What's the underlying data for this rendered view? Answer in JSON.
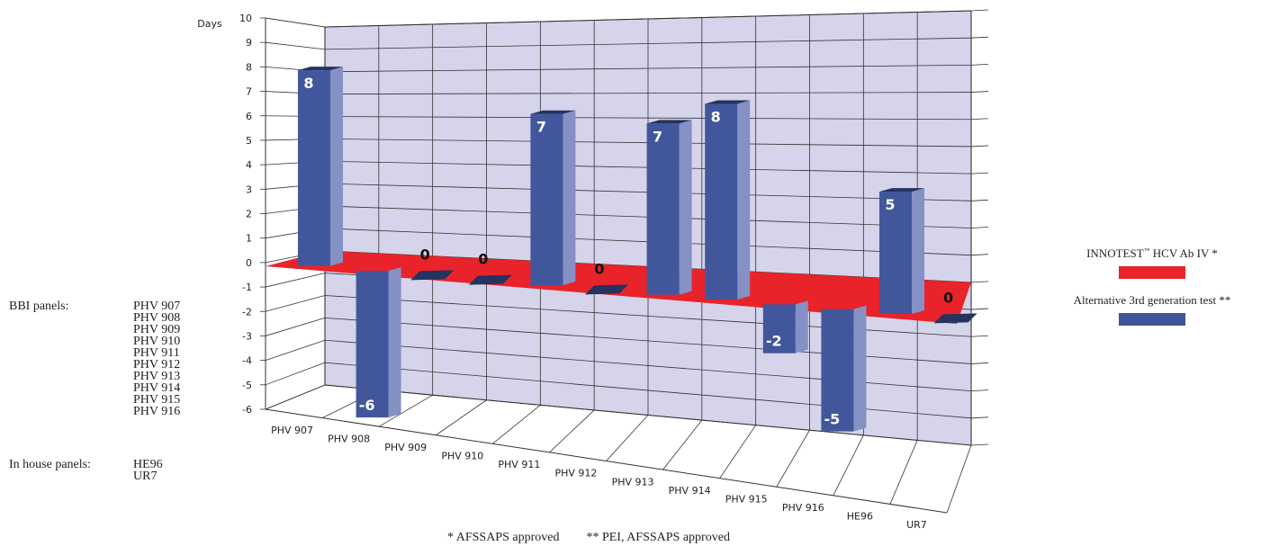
{
  "chart_data": {
    "type": "bar",
    "title": "",
    "ylabel": "Days",
    "xlabel": "",
    "ylim": [
      -6,
      10
    ],
    "categories": [
      "PHV 907",
      "PHV 908",
      "PHV 909",
      "PHV 910",
      "PHV 911",
      "PHV 912",
      "PHV 913",
      "PHV 914",
      "PHV 915",
      "PHV 916",
      "HE96",
      "UR7"
    ],
    "series": [
      {
        "name": "INNOTEST™ HCV Ab IV *",
        "values": [
          0,
          0,
          0,
          0,
          0,
          0,
          0,
          0,
          0,
          0,
          0,
          0
        ]
      },
      {
        "name": "Alternative 3rd generation test **",
        "values": [
          8,
          -6,
          0,
          0,
          7,
          0,
          7,
          8,
          -2,
          -5,
          5,
          0
        ]
      }
    ],
    "data_labels": [
      "8",
      "-6",
      "0",
      "0",
      "7",
      "0",
      "7",
      "8",
      "-2",
      "-5",
      "5",
      "0"
    ],
    "colors": {
      "innotest": "#e8232a",
      "alternative": "#3e5699",
      "background_wall": "#d6d4ea"
    },
    "grid": true,
    "legend_position": "right"
  },
  "legend": {
    "innotest": {
      "name_pre": "INNOTEST",
      "tm": "™",
      "name_post": " HCV Ab IV *",
      "color": "#e8232a"
    },
    "alternative": {
      "name": "Alternative 3rd generation test **",
      "color": "#3e5699"
    }
  },
  "side_panels": {
    "bbi_label": "BBI panels:",
    "bbi_items": [
      "PHV 907",
      "PHV 908",
      "PHV 909",
      "PHV 910",
      "PHV 911",
      "PHV 912",
      "PHV 913",
      "PHV 914",
      "PHV 915",
      "PHV 916"
    ],
    "inhouse_label": "In house panels:",
    "inhouse_items": [
      "HE96",
      "UR7"
    ]
  },
  "footnotes": {
    "afssaps": "* AFSSAPS approved",
    "pei": "** PEI, AFSSAPS approved"
  }
}
